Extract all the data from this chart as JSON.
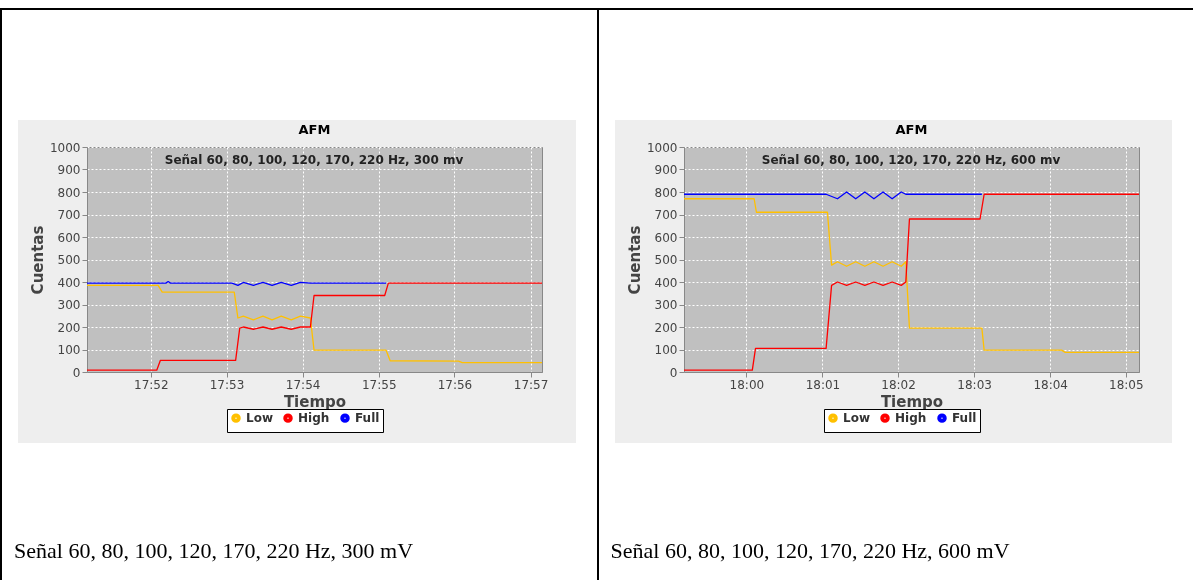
{
  "chart_data": [
    {
      "type": "line",
      "title": "AFM",
      "xlabel": "Tiempo",
      "ylabel": "Cuentas",
      "annotations": [
        "Señal 60, 80, 100, 120, 170, 220 Hz, 300 mv",
        "Señal 60, 80, 100, 120, 170, 220 Hz, 300 mV"
      ],
      "xlim": [
        17.8527,
        17.9525
      ],
      "xticks": [
        {
          "value": 17.8667,
          "label": "17:52"
        },
        {
          "value": 17.8833,
          "label": "17:53"
        },
        {
          "value": 17.9,
          "label": "17:54"
        },
        {
          "value": 17.9167,
          "label": "17:55"
        },
        {
          "value": 17.9333,
          "label": "17:56"
        },
        {
          "value": 17.95,
          "label": "17:57"
        }
      ],
      "ylim": [
        0,
        1000
      ],
      "yticks": [
        0,
        100,
        200,
        300,
        400,
        500,
        600,
        700,
        800,
        900,
        1000
      ],
      "grid": true,
      "legend": "bottom",
      "marker": "none",
      "series": [
        {
          "name": "Low",
          "color": "#ffc000",
          "x": [
            17.8527,
            17.8683,
            17.8692,
            17.885,
            17.8858,
            17.887,
            17.8892,
            17.8913,
            17.8933,
            17.8953,
            17.8975,
            17.8995,
            17.9017,
            17.9025,
            17.9183,
            17.9192,
            17.9342,
            17.935,
            17.9525
          ],
          "values": [
            385,
            385,
            355,
            355,
            240,
            248,
            232,
            248,
            232,
            248,
            232,
            248,
            240,
            97,
            97,
            50,
            48,
            42,
            42
          ]
        },
        {
          "name": "High",
          "color": "#ff0000",
          "x": [
            17.8527,
            17.868,
            17.8688,
            17.8853,
            17.8862,
            17.887,
            17.8892,
            17.8913,
            17.8933,
            17.8953,
            17.8975,
            17.8995,
            17.9017,
            17.9025,
            17.918,
            17.9188,
            17.9525
          ],
          "values": [
            8,
            8,
            52,
            52,
            195,
            200,
            190,
            200,
            190,
            200,
            190,
            200,
            200,
            340,
            340,
            395,
            395
          ]
        },
        {
          "name": "Full",
          "color": "#0000ff",
          "x": [
            17.8527,
            17.87,
            17.8705,
            17.871,
            17.8845,
            17.8858,
            17.887,
            17.8892,
            17.8913,
            17.8933,
            17.8953,
            17.8975,
            17.8995,
            17.9017,
            17.9183
          ],
          "values": [
            395,
            395,
            402,
            395,
            395,
            385,
            398,
            385,
            398,
            385,
            398,
            385,
            398,
            395,
            395
          ]
        }
      ]
    },
    {
      "type": "line",
      "title": "AFM",
      "xlabel": "Tiempo",
      "ylabel": "Cuentas",
      "annotations": [
        "Señal 60, 80, 100, 120, 170, 220 Hz, 600 mv",
        "Señal 60, 80, 100, 120, 170, 220 Hz, 600 mV"
      ],
      "xlim": [
        17.9863,
        18.0862
      ],
      "xticks": [
        {
          "value": 18,
          "label": "18:00"
        },
        {
          "value": 18.0167,
          "label": "18:01"
        },
        {
          "value": 18.0333,
          "label": "18:02"
        },
        {
          "value": 18.05,
          "label": "18:03"
        },
        {
          "value": 18.0667,
          "label": "18:04"
        },
        {
          "value": 18.0833,
          "label": "18:05"
        }
      ],
      "ylim": [
        0,
        1000
      ],
      "yticks": [
        0,
        100,
        200,
        300,
        400,
        500,
        600,
        700,
        800,
        900,
        1000
      ],
      "grid": true,
      "legend": "bottom",
      "marker": "none",
      "series": [
        {
          "name": "Low",
          "color": "#ffc000",
          "x": [
            17.9863,
            18.0017,
            18.0022,
            18.0178,
            18.0187,
            18.02,
            18.022,
            18.024,
            18.026,
            18.028,
            18.03,
            18.032,
            18.034,
            18.035,
            18.0358,
            18.0517,
            18.0522,
            18.0692,
            18.07,
            18.0862
          ],
          "values": [
            770,
            770,
            710,
            710,
            475,
            490,
            470,
            490,
            470,
            490,
            470,
            490,
            470,
            490,
            195,
            195,
            97,
            97,
            87,
            87
          ]
        },
        {
          "name": "High",
          "color": "#ff0000",
          "x": [
            17.9863,
            18.0013,
            18.002,
            18.0175,
            18.0187,
            18.02,
            18.022,
            18.024,
            18.026,
            18.028,
            18.03,
            18.032,
            18.034,
            18.035,
            18.0358,
            18.0513,
            18.0522,
            18.0862
          ],
          "values": [
            8,
            8,
            105,
            105,
            385,
            400,
            385,
            400,
            385,
            400,
            385,
            400,
            385,
            400,
            680,
            680,
            790,
            790
          ]
        },
        {
          "name": "Full",
          "color": "#0000ff",
          "x": [
            17.9863,
            18.0175,
            18.02,
            18.022,
            18.024,
            18.026,
            18.028,
            18.03,
            18.032,
            18.034,
            18.035,
            18.0517
          ],
          "values": [
            790,
            790,
            770,
            800,
            770,
            800,
            770,
            800,
            770,
            800,
            790,
            790
          ]
        }
      ]
    }
  ]
}
